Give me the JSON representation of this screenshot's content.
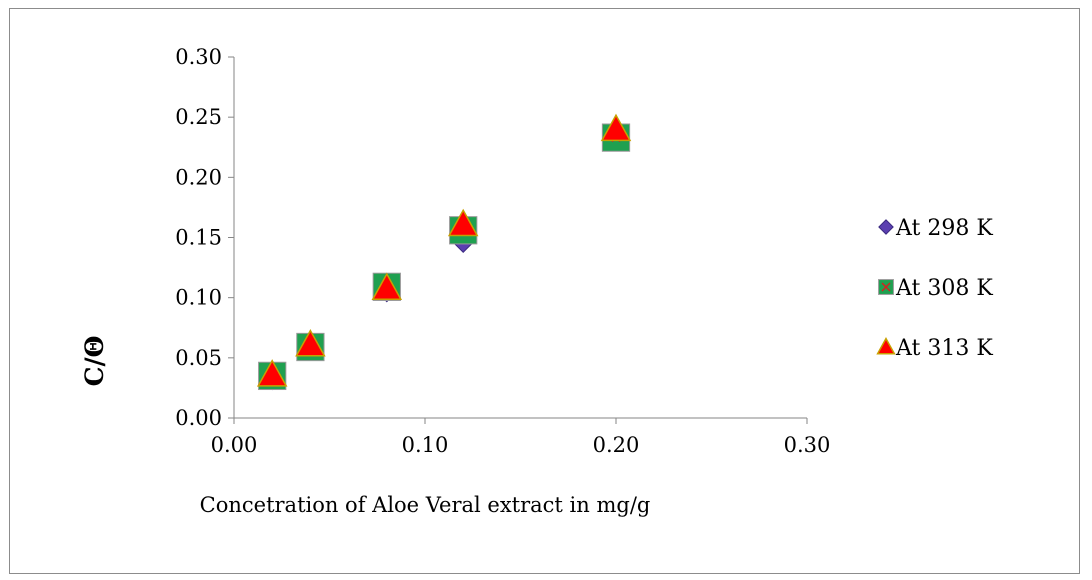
{
  "chart_data": {
    "type": "scatter",
    "title": "",
    "xlabel": "Concetration  of Aloe Veral extract in mg/g",
    "ylabel": "C/Θ",
    "xlim": [
      0,
      0.3
    ],
    "ylim": [
      0,
      0.3
    ],
    "x_ticks": [
      "0.00",
      "0.10",
      "0.20",
      "0.30"
    ],
    "y_ticks": [
      "0.00",
      "0.05",
      "0.10",
      "0.15",
      "0.20",
      "0.25",
      "0.30"
    ],
    "grid": false,
    "legend_position": "right",
    "series": [
      {
        "name": "At 298 K",
        "marker": "diamond",
        "color": "#5b3fb0",
        "x": [
          0.02,
          0.04,
          0.08,
          0.12,
          0.2
        ],
        "y": [
          0.031,
          0.058,
          0.104,
          0.145,
          0.236
        ]
      },
      {
        "name": "At 308 K",
        "marker": "square",
        "color": "#1fa050",
        "x": [
          0.02,
          0.04,
          0.08,
          0.12,
          0.2
        ],
        "y": [
          0.035,
          0.059,
          0.109,
          0.156,
          0.233
        ]
      },
      {
        "name": "At 313 K",
        "marker": "triangle",
        "color": "#ff0000",
        "edge_color": "#c8a000",
        "x": [
          0.02,
          0.04,
          0.08,
          0.12,
          0.2
        ],
        "y": [
          0.036,
          0.061,
          0.108,
          0.161,
          0.24
        ]
      }
    ]
  }
}
